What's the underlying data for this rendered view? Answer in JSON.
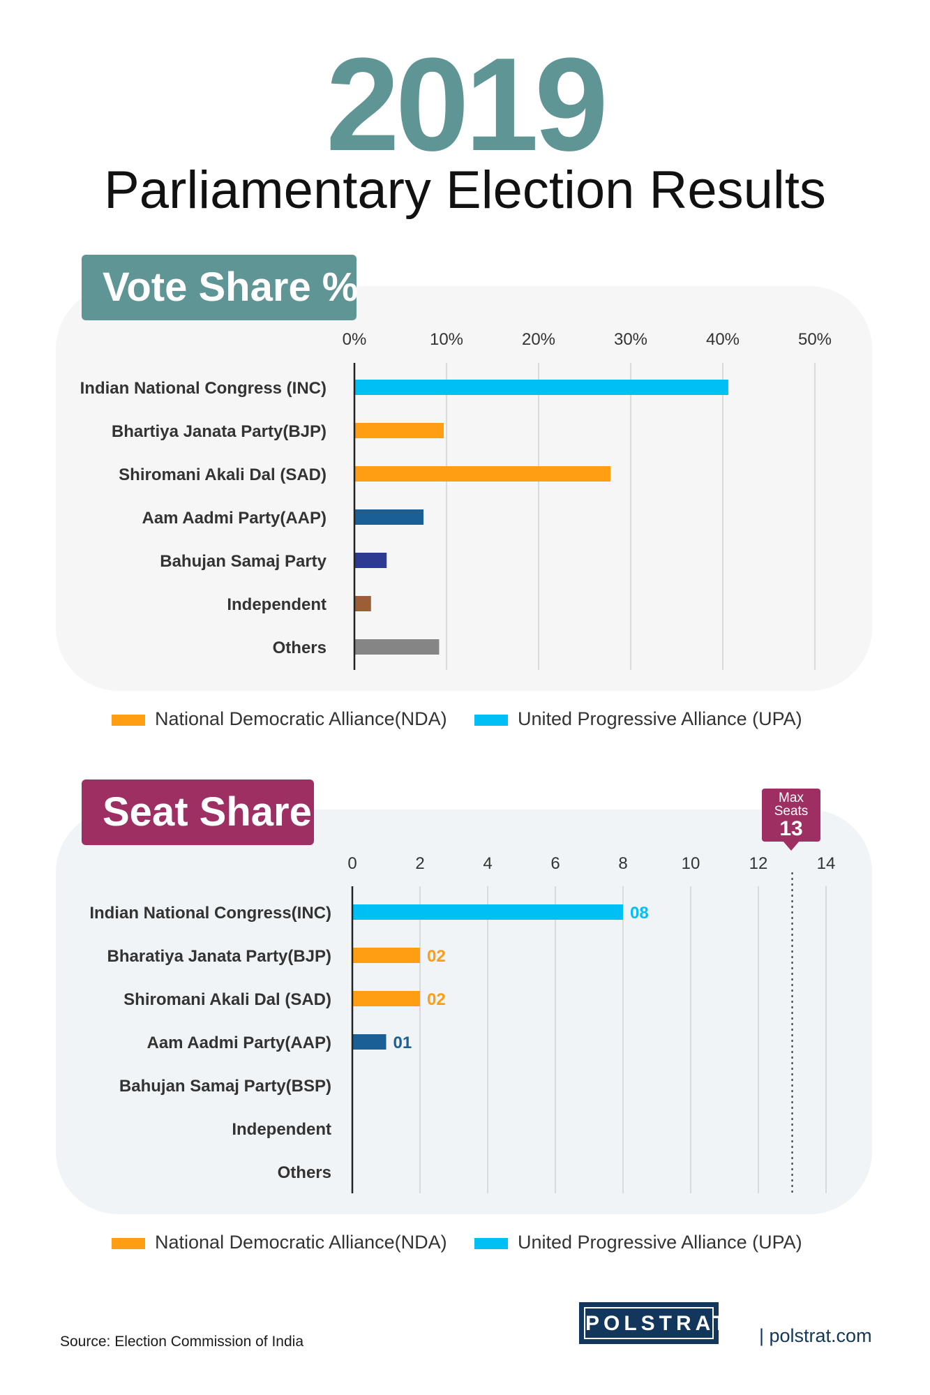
{
  "header": {
    "year": "2019",
    "subtitle": "Parliamentary Election Results"
  },
  "colors": {
    "teal": "#5f9595",
    "magenta": "#9e2f63",
    "nda": "#ff9e12",
    "upa": "#00bff4",
    "aap": "#1a5f96",
    "bsp": "#2c3a92",
    "independent": "#9b5e36",
    "others": "#858585",
    "navy": "#13375c"
  },
  "legend": {
    "nda_label": "National Democratic Alliance(NDA)",
    "upa_label": "United Progressive Alliance (UPA)"
  },
  "chart_data": [
    {
      "title": "Vote Share %",
      "type": "bar",
      "orientation": "horizontal",
      "categories": [
        "Indian National Congress (INC)",
        "Bhartiya Janata Party(BJP)",
        "Shiromani Akali Dal (SAD)",
        "Aam Aadmi Party(AAP)",
        "Bahujan Samaj Party",
        "Independent",
        "Others"
      ],
      "values": [
        40.6,
        9.7,
        27.8,
        7.5,
        3.5,
        1.8,
        9.2
      ],
      "bar_colors": [
        "#00bff4",
        "#ff9e12",
        "#ff9e12",
        "#1a5f96",
        "#2c3a92",
        "#9b5e36",
        "#858585"
      ],
      "xlim": [
        0,
        50
      ],
      "xticks": [
        0,
        10,
        20,
        30,
        40,
        50
      ],
      "tick_labels": [
        "0%",
        "10%",
        "20%",
        "30%",
        "40%",
        "50%"
      ],
      "legend": [
        "National Democratic Alliance(NDA)",
        "United Progressive Alliance (UPA)"
      ],
      "grid": true
    },
    {
      "title": "Seat Share",
      "type": "bar",
      "orientation": "horizontal",
      "categories": [
        "Indian National Congress(INC)",
        "Bharatiya Janata Party(BJP)",
        "Shiromani Akali Dal (SAD)",
        "Aam Aadmi Party(AAP)",
        "Bahujan Samaj Party(BSP)",
        "Independent",
        "Others"
      ],
      "values": [
        8,
        2,
        2,
        1,
        0,
        0,
        0
      ],
      "value_labels": [
        "08",
        "02",
        "02",
        "01",
        "",
        "",
        ""
      ],
      "bar_colors": [
        "#00bff4",
        "#ff9e12",
        "#ff9e12",
        "#1a5f96",
        "#2c3a92",
        "#9b5e36",
        "#858585"
      ],
      "xlim": [
        0,
        14
      ],
      "xticks": [
        0,
        2,
        4,
        6,
        8,
        10,
        12,
        14
      ],
      "tick_labels": [
        "0",
        "2",
        "4",
        "6",
        "8",
        "10",
        "12",
        "14"
      ],
      "max_seats": 13,
      "max_label_line1": "Max",
      "max_label_line2": "Seats",
      "max_value_label": "13",
      "legend": [
        "National Democratic Alliance(NDA)",
        "United Progressive Alliance (UPA)"
      ],
      "grid": true
    }
  ],
  "footer": {
    "source": "Source:  Election Commission of India",
    "logo_text": "POLSTRAT",
    "site": "| polstrat.com"
  }
}
